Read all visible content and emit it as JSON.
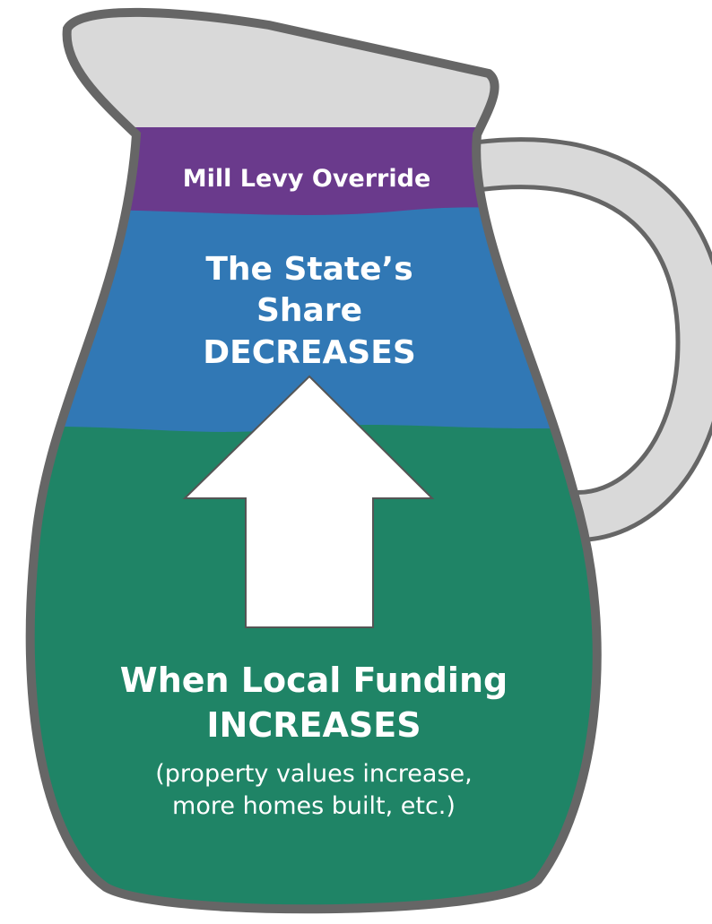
{
  "layers": {
    "top": {
      "label": "Mill Levy Override"
    },
    "middle": {
      "lines": [
        "The State’s",
        "Share",
        "DECREASES"
      ]
    },
    "bottom": {
      "lines": [
        "When Local Funding",
        "INCREASES"
      ],
      "note_lines": [
        "(property values increase,",
        "more homes built, etc.)"
      ]
    }
  }
}
